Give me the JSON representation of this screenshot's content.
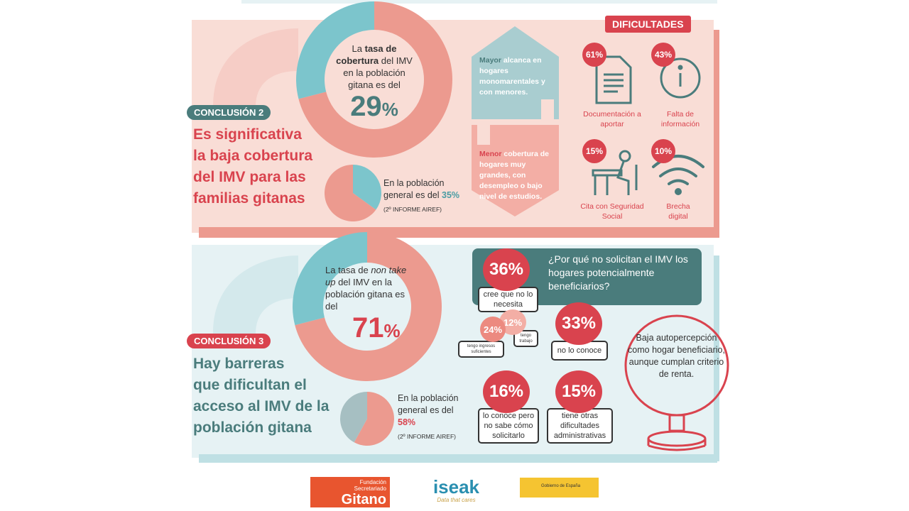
{
  "colors": {
    "teal": "#7cc5cc",
    "salmon": "#ec9a8f",
    "red": "#d9434e",
    "dark_teal": "#4a7c7c",
    "pink_bg": "#f9ddd6",
    "blue_bg": "#e6f2f4"
  },
  "conclusion2": {
    "tag": "CONCLUSIÓN 2",
    "headline": [
      "Es significativa",
      "la baja cobertura",
      "del IMV para las",
      "familias gitanas"
    ],
    "donut": {
      "value": 29,
      "text_pre": "La ",
      "text_bold": "tasa de cobertura",
      "text_post": " del IMV en la población gitana es del",
      "value_label": "29",
      "unit": "%"
    },
    "pie": {
      "value": 35,
      "text": "En la población general es del ",
      "value_label": "35%",
      "source": "(2º INFORME AIREF)"
    },
    "house_up": {
      "bold": "Mayor",
      "text": " alcanca en hogares monomarentales y con menores."
    },
    "house_down": {
      "bold": "Menor",
      "text": " cobertura de hogares muy grandes, con desempleo o bajo nivel de estudios."
    },
    "difficulties": {
      "title": "DIFICULTADES",
      "items": [
        {
          "pct": "61%",
          "label": "Documentación a aportar",
          "icon": "document-icon"
        },
        {
          "pct": "43%",
          "label": "Falta de información",
          "icon": "info-icon"
        },
        {
          "pct": "15%",
          "label": "Cita con Seguridad Social",
          "icon": "person-at-desk-icon"
        },
        {
          "pct": "10%",
          "label": "Brecha digital",
          "icon": "wifi-icon"
        }
      ]
    }
  },
  "conclusion3": {
    "tag": "CONCLUSIÓN 3",
    "headline": [
      "Hay barreras",
      "que dificultan el",
      "acceso al IMV de la",
      "población gitana"
    ],
    "donut": {
      "value": 71,
      "text_pre": "La tasa de ",
      "text_italic": "non take up",
      "text_post": " del IMV en la población gitana es del",
      "value_label": "71",
      "unit": "%"
    },
    "pie": {
      "value": 58,
      "text": "En la población general es del ",
      "value_label": "58%",
      "source": "(2º INFORME AIREF)"
    },
    "question": "¿Por qué no solicitan el IMV los hogares potencialmente beneficiarios?",
    "reasons": [
      {
        "pct": "36%",
        "label": "cree que no lo necesita"
      },
      {
        "pct": "24%",
        "label": "tengo ingresos suficientes"
      },
      {
        "pct": "12%",
        "label": "tengo trabajo"
      },
      {
        "pct": "33%",
        "label": "no lo conoce"
      },
      {
        "pct": "16%",
        "label": "lo conoce pero no sabe cómo solicitarlo"
      },
      {
        "pct": "15%",
        "label": "tiene otras dificultades administrativas"
      }
    ],
    "mirror_text": "Baja autopercepción como hogar beneficiario, aunque cumplan criterio de renta."
  },
  "logos": {
    "fsg": [
      "Fundación",
      "Secretariado",
      "Gitano"
    ],
    "iseak": [
      "iseak",
      "Data that cares"
    ],
    "gov": "Gobierno de España"
  }
}
